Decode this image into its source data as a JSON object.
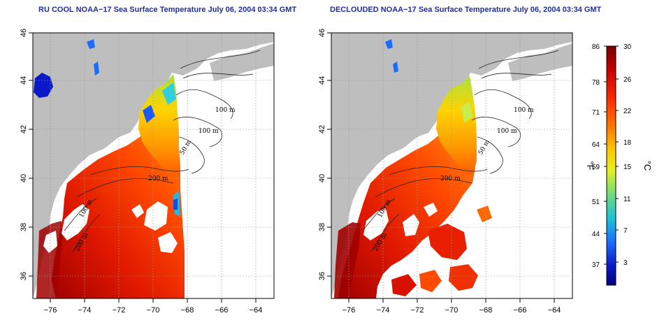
{
  "panels": [
    {
      "id": "left",
      "title": "RU COOL NOAA−17 Sea Surface Temperature July 06, 2004 03:34 GMT",
      "x_ticks": [
        "−76",
        "−74",
        "−72",
        "−70",
        "−68",
        "−66",
        "−64"
      ],
      "y_ticks": [
        "46",
        "44",
        "42",
        "40",
        "38",
        "36"
      ],
      "contour_labels": [
        "100 m",
        "100 m",
        "50 m",
        "200 m",
        "100 m",
        "200 m"
      ]
    },
    {
      "id": "right",
      "title": "DECLOUDED NOAA−17 Sea Surface Temperature July 06, 2004 03:34 GMT",
      "x_ticks": [
        "−76",
        "−74",
        "−72",
        "−70",
        "−68",
        "−66",
        "−64"
      ],
      "y_ticks": [
        "46",
        "44",
        "42",
        "40",
        "38",
        "36"
      ],
      "contour_labels": [
        "100 m",
        "100 m",
        "50 m",
        "200 m",
        "100 m",
        "200 m"
      ]
    }
  ],
  "colorbar": {
    "fahrenheit_label": "°F",
    "celsius_label": "°C",
    "fahrenheit_ticks": [
      "86",
      "78",
      "71",
      "64",
      "59",
      "51",
      "44",
      "37"
    ],
    "celsius_ticks": [
      "30",
      "26",
      "22",
      "18",
      "15",
      "11",
      "7",
      "3"
    ],
    "colors": [
      "#7a0000",
      "#c80000",
      "#ff2a00",
      "#ff7a00",
      "#ffcc00",
      "#e6ef20",
      "#6fdc7a",
      "#18c4d8",
      "#1a6eff",
      "#0a18c8",
      "#000080"
    ]
  },
  "colors": {
    "land": "#bebebe",
    "cloud": "#ffffff",
    "title": "#1e2f9c",
    "grid": "#9a9a9a"
  }
}
